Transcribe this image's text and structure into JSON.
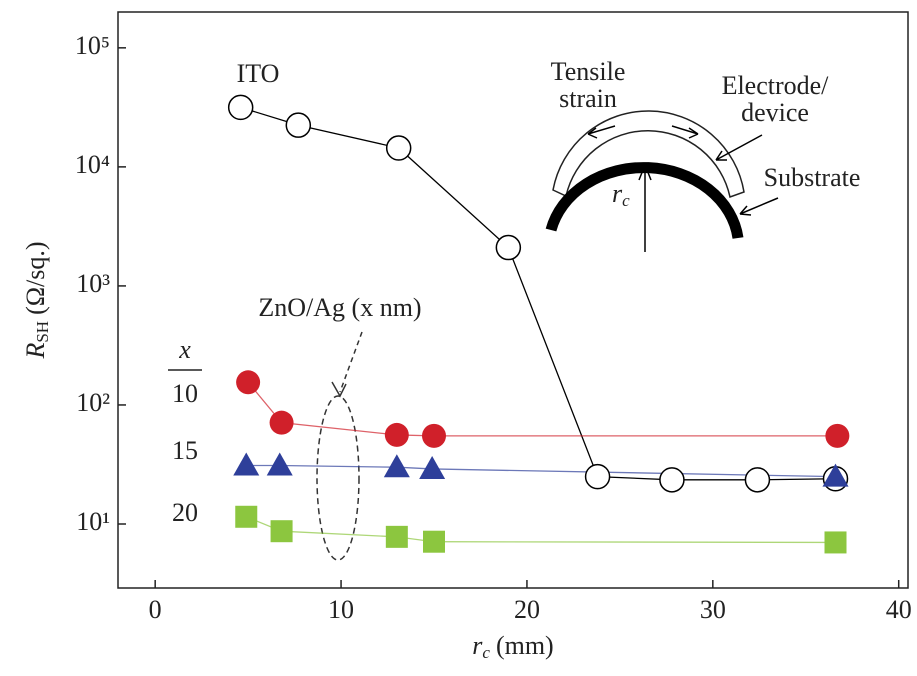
{
  "chart_data": {
    "type": "line",
    "log_y": true,
    "x_label": {
      "symbol": "r",
      "subscript": "c",
      "unit": "(mm)"
    },
    "y_label": {
      "symbol": "R",
      "subscript": "SH",
      "unit": "(Ω/sq.)"
    },
    "xlim": [
      -2,
      40.5
    ],
    "xticks": [
      0,
      10,
      20,
      30,
      40
    ],
    "ylim": [
      2.9,
      200000
    ],
    "yticks": [
      {
        "value": 10,
        "label": "10¹"
      },
      {
        "value": 100,
        "label": "10²"
      },
      {
        "value": 1000,
        "label": "10³"
      },
      {
        "value": 10000,
        "label": "10⁴"
      },
      {
        "value": 100000,
        "label": "10⁵"
      }
    ],
    "series": [
      {
        "name": "ITO",
        "color": "#000000",
        "marker": "circle-open",
        "x": [
          4.6,
          7.7,
          13.1,
          19.0,
          23.8,
          27.8,
          32.4,
          36.6
        ],
        "values": [
          31600,
          22400,
          14400,
          2100,
          25,
          23.5,
          23.5,
          24
        ]
      },
      {
        "name": "10",
        "color": "#d0202a",
        "marker": "circle",
        "x": [
          5.0,
          6.8,
          13.0,
          15.0,
          36.7
        ],
        "values": [
          155,
          71,
          56,
          55,
          55
        ]
      },
      {
        "name": "15",
        "color": "#2e3f9a",
        "marker": "triangle",
        "x": [
          4.9,
          6.7,
          13.0,
          14.9,
          36.6
        ],
        "values": [
          31,
          31,
          30,
          29,
          25
        ]
      },
      {
        "name": "20",
        "color": "#8cc63f",
        "marker": "square",
        "x": [
          4.9,
          6.8,
          13.0,
          15.0,
          36.6
        ],
        "values": [
          11.5,
          8.7,
          7.8,
          7.1,
          7.0
        ]
      }
    ],
    "annotations": {
      "legend_header": "x",
      "group_label": "ZnO/Ag (x nm)",
      "tensile_1": "Tensile",
      "tensile_2": "strain",
      "electrode_1": "Electrode/",
      "electrode_2": "device",
      "substrate": "Substrate",
      "radius_symbol": "r",
      "radius_subscript": "c"
    }
  }
}
